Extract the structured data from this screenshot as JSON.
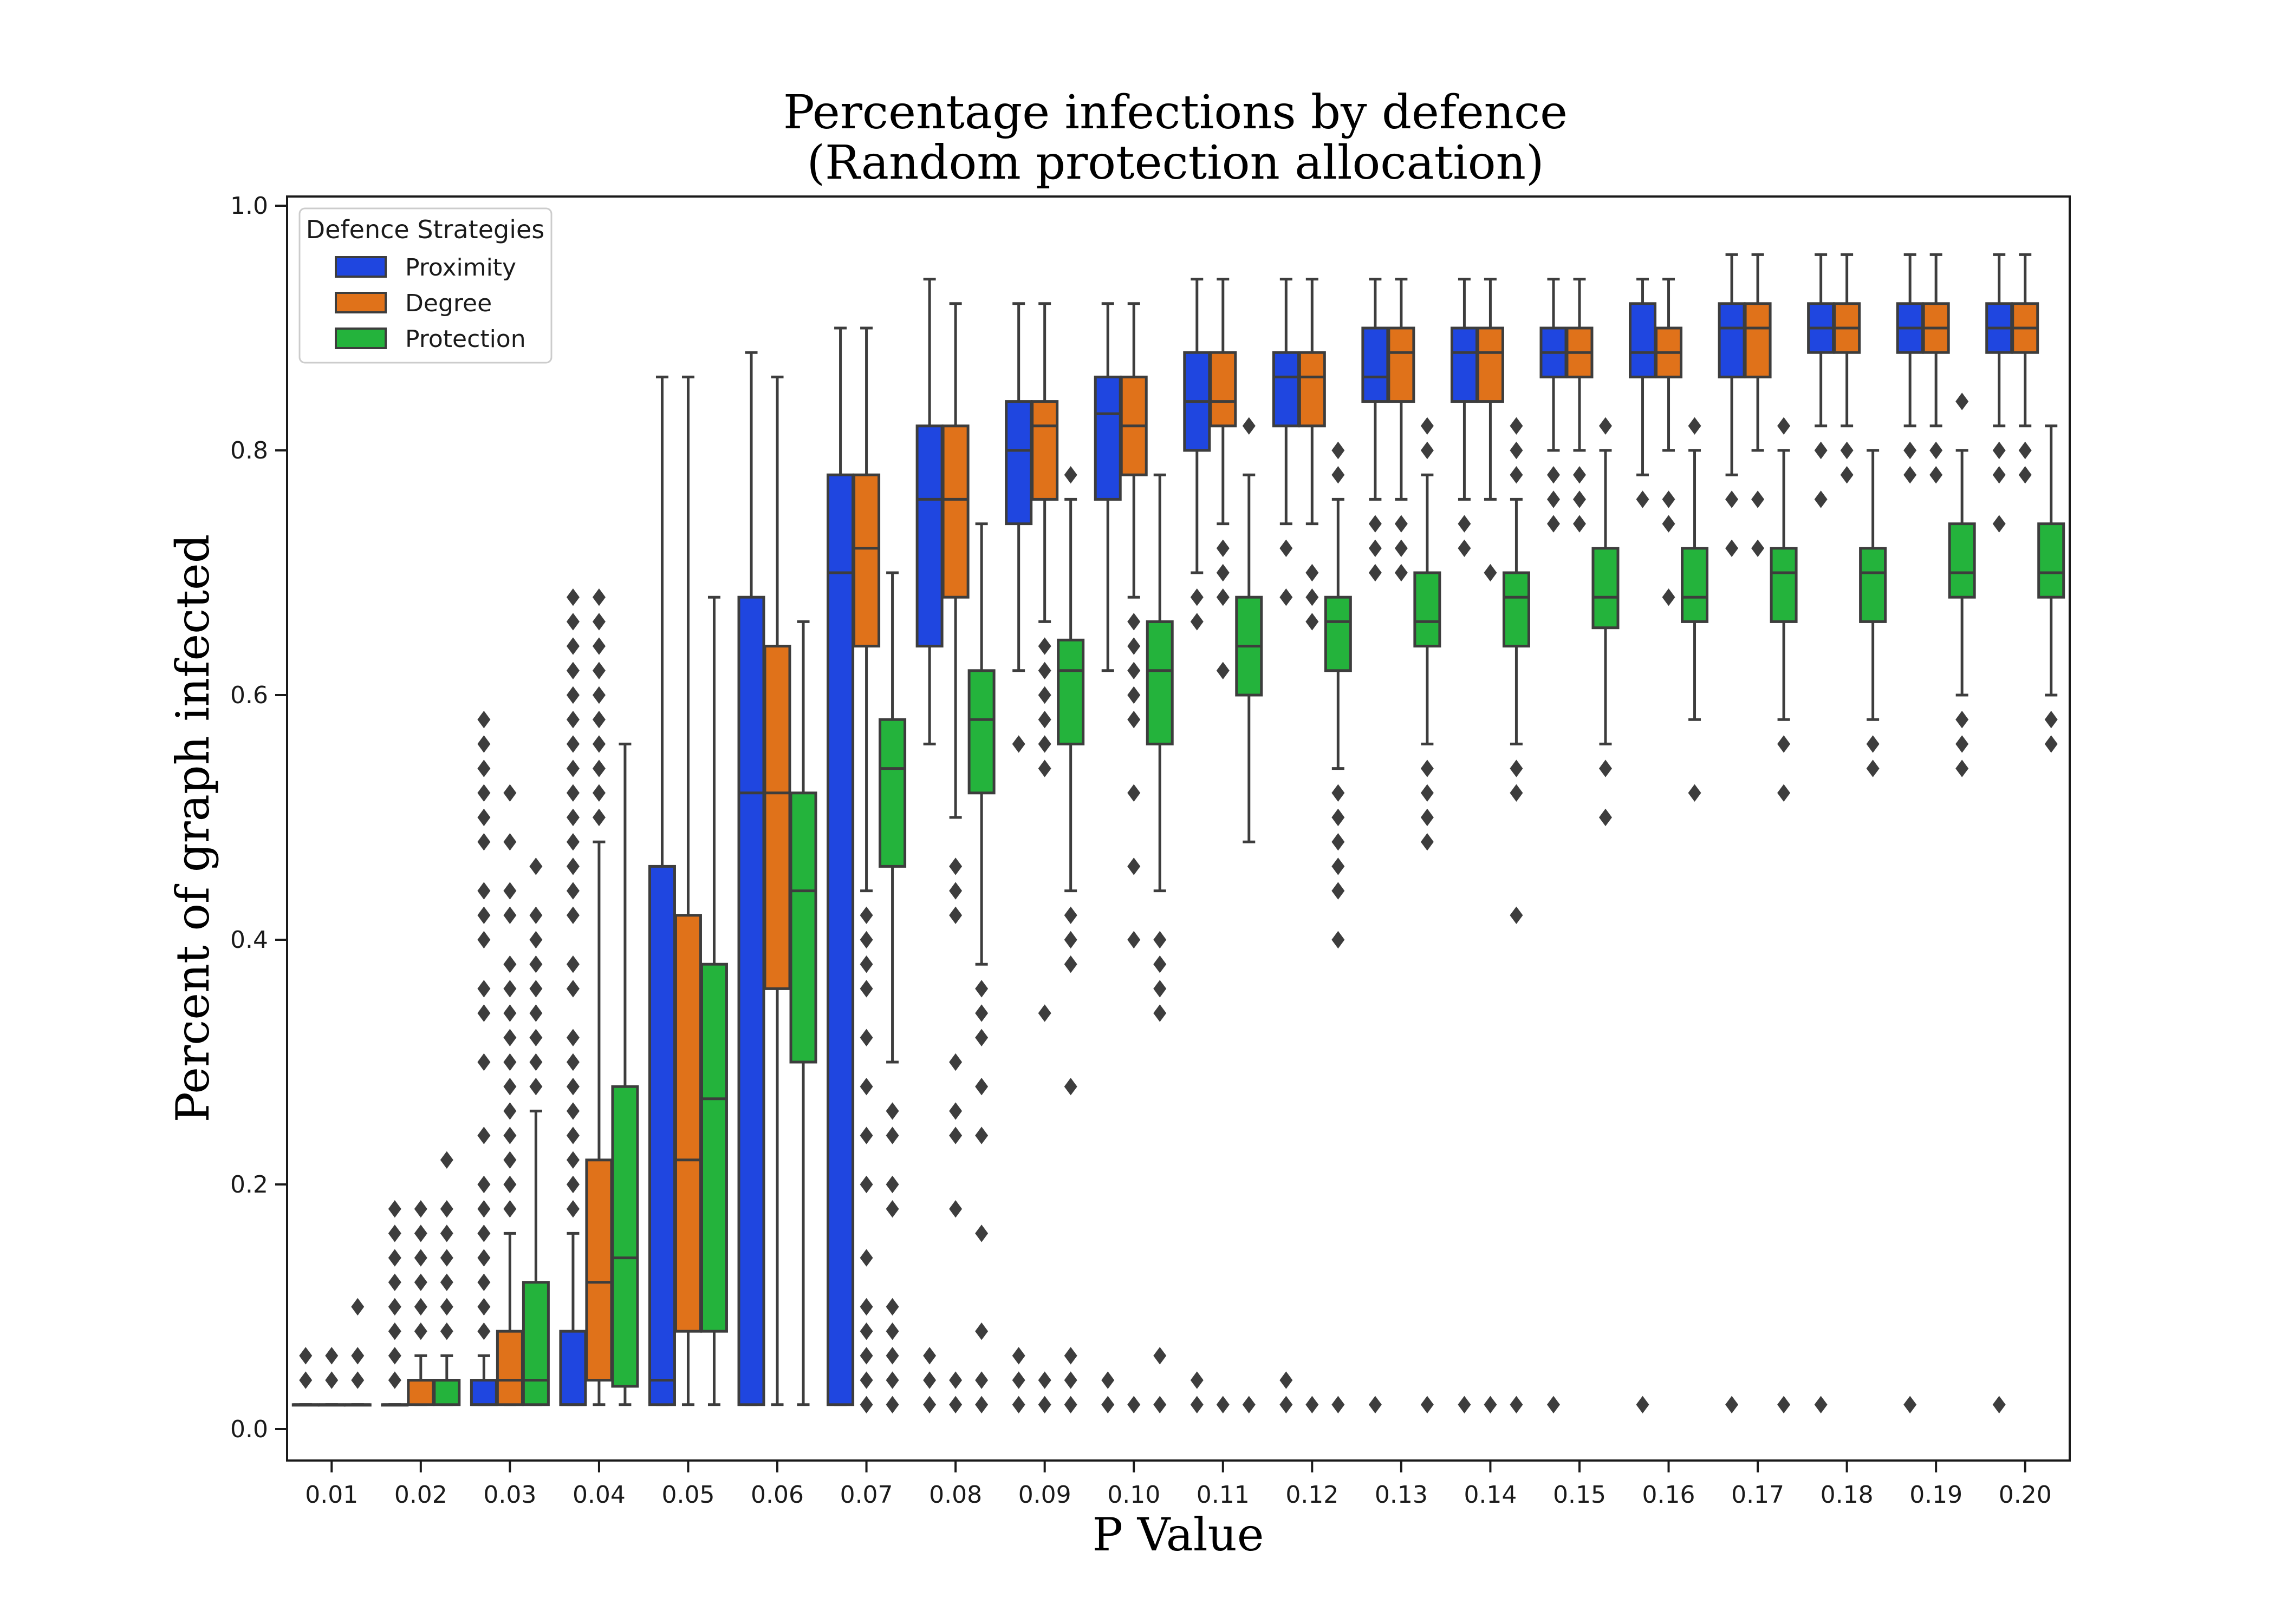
{
  "chart_data": {
    "type": "boxplot",
    "title_line1": "Percentage infections by defence",
    "title_line2": "(Random protection allocation)",
    "xlabel": "P Value",
    "ylabel": "Percent of graph infected",
    "ylim": [
      -0.025,
      1.0
    ],
    "y_ticks": [
      "0.0",
      "0.2",
      "0.4",
      "0.6",
      "0.8",
      "1.0"
    ],
    "categories": [
      "0.01",
      "0.02",
      "0.03",
      "0.04",
      "0.05",
      "0.06",
      "0.07",
      "0.08",
      "0.09",
      "0.10",
      "0.11",
      "0.12",
      "0.13",
      "0.14",
      "0.15",
      "0.16",
      "0.17",
      "0.18",
      "0.19",
      "0.20"
    ],
    "legend": {
      "title": "Defence Strategies",
      "placement": "top-left"
    },
    "series": [
      {
        "name": "Proximity",
        "color": "#1f46e0",
        "boxes": [
          {
            "q1": 0.02,
            "median": 0.02,
            "q3": 0.02,
            "whislo": 0.02,
            "whishi": 0.02,
            "fliers": [
              0.04,
              0.06
            ]
          },
          {
            "q1": 0.02,
            "median": 0.02,
            "q3": 0.02,
            "whislo": 0.02,
            "whishi": 0.02,
            "fliers": [
              0.04,
              0.06,
              0.08,
              0.1,
              0.12,
              0.14,
              0.16,
              0.18
            ]
          },
          {
            "q1": 0.02,
            "median": 0.02,
            "q3": 0.04,
            "whislo": 0.02,
            "whishi": 0.06,
            "fliers": [
              0.08,
              0.1,
              0.12,
              0.14,
              0.16,
              0.18,
              0.2,
              0.24,
              0.3,
              0.34,
              0.36,
              0.4,
              0.42,
              0.44,
              0.48,
              0.5,
              0.52,
              0.54,
              0.56,
              0.58
            ]
          },
          {
            "q1": 0.02,
            "median": 0.02,
            "q3": 0.08,
            "whislo": 0.02,
            "whishi": 0.16,
            "fliers": [
              0.18,
              0.2,
              0.22,
              0.24,
              0.26,
              0.28,
              0.3,
              0.32,
              0.36,
              0.38,
              0.42,
              0.44,
              0.46,
              0.48,
              0.5,
              0.52,
              0.54,
              0.56,
              0.58,
              0.6,
              0.62,
              0.64,
              0.66,
              0.68
            ]
          },
          {
            "q1": 0.02,
            "median": 0.04,
            "q3": 0.46,
            "whislo": 0.02,
            "whishi": 0.86,
            "fliers": []
          },
          {
            "q1": 0.02,
            "median": 0.52,
            "q3": 0.68,
            "whislo": 0.02,
            "whishi": 0.88,
            "fliers": []
          },
          {
            "q1": 0.02,
            "median": 0.7,
            "q3": 0.78,
            "whislo": 0.02,
            "whishi": 0.9,
            "fliers": []
          },
          {
            "q1": 0.64,
            "median": 0.76,
            "q3": 0.82,
            "whislo": 0.56,
            "whishi": 0.94,
            "fliers": [
              0.02,
              0.04,
              0.06
            ]
          },
          {
            "q1": 0.74,
            "median": 0.8,
            "q3": 0.84,
            "whislo": 0.62,
            "whishi": 0.92,
            "fliers": [
              0.02,
              0.04,
              0.06,
              0.56
            ]
          },
          {
            "q1": 0.76,
            "median": 0.83,
            "q3": 0.86,
            "whislo": 0.62,
            "whishi": 0.92,
            "fliers": [
              0.02,
              0.04
            ]
          },
          {
            "q1": 0.8,
            "median": 0.84,
            "q3": 0.88,
            "whislo": 0.7,
            "whishi": 0.94,
            "fliers": [
              0.02,
              0.04,
              0.66,
              0.68
            ]
          },
          {
            "q1": 0.82,
            "median": 0.86,
            "q3": 0.88,
            "whislo": 0.74,
            "whishi": 0.94,
            "fliers": [
              0.02,
              0.04,
              0.68,
              0.72
            ]
          },
          {
            "q1": 0.84,
            "median": 0.86,
            "q3": 0.9,
            "whislo": 0.76,
            "whishi": 0.94,
            "fliers": [
              0.02,
              0.7,
              0.72,
              0.74
            ]
          },
          {
            "q1": 0.84,
            "median": 0.88,
            "q3": 0.9,
            "whislo": 0.76,
            "whishi": 0.94,
            "fliers": [
              0.02,
              0.72,
              0.74
            ]
          },
          {
            "q1": 0.86,
            "median": 0.88,
            "q3": 0.9,
            "whislo": 0.8,
            "whishi": 0.94,
            "fliers": [
              0.02,
              0.74,
              0.76,
              0.78
            ]
          },
          {
            "q1": 0.86,
            "median": 0.88,
            "q3": 0.92,
            "whislo": 0.78,
            "whishi": 0.94,
            "fliers": [
              0.02,
              0.76
            ]
          },
          {
            "q1": 0.86,
            "median": 0.9,
            "q3": 0.92,
            "whislo": 0.78,
            "whishi": 0.96,
            "fliers": [
              0.02,
              0.72,
              0.76
            ]
          },
          {
            "q1": 0.88,
            "median": 0.9,
            "q3": 0.92,
            "whislo": 0.82,
            "whishi": 0.96,
            "fliers": [
              0.02,
              0.76,
              0.8
            ]
          },
          {
            "q1": 0.88,
            "median": 0.9,
            "q3": 0.92,
            "whislo": 0.82,
            "whishi": 0.96,
            "fliers": [
              0.02,
              0.78,
              0.8
            ]
          },
          {
            "q1": 0.88,
            "median": 0.9,
            "q3": 0.92,
            "whislo": 0.82,
            "whishi": 0.96,
            "fliers": [
              0.02,
              0.74,
              0.78,
              0.8
            ]
          }
        ]
      },
      {
        "name": "Degree",
        "color": "#e0721a",
        "boxes": [
          {
            "q1": 0.02,
            "median": 0.02,
            "q3": 0.02,
            "whislo": 0.02,
            "whishi": 0.02,
            "fliers": [
              0.04,
              0.06
            ]
          },
          {
            "q1": 0.02,
            "median": 0.04,
            "q3": 0.04,
            "whislo": 0.02,
            "whishi": 0.06,
            "fliers": [
              0.08,
              0.1,
              0.12,
              0.14,
              0.16,
              0.18
            ]
          },
          {
            "q1": 0.02,
            "median": 0.04,
            "q3": 0.08,
            "whislo": 0.02,
            "whishi": 0.16,
            "fliers": [
              0.18,
              0.2,
              0.22,
              0.24,
              0.26,
              0.28,
              0.3,
              0.32,
              0.34,
              0.36,
              0.38,
              0.42,
              0.44,
              0.48,
              0.52
            ]
          },
          {
            "q1": 0.04,
            "median": 0.12,
            "q3": 0.22,
            "whislo": 0.02,
            "whishi": 0.48,
            "fliers": [
              0.5,
              0.52,
              0.54,
              0.56,
              0.58,
              0.6,
              0.62,
              0.64,
              0.66,
              0.68
            ]
          },
          {
            "q1": 0.08,
            "median": 0.22,
            "q3": 0.42,
            "whislo": 0.02,
            "whishi": 0.86,
            "fliers": []
          },
          {
            "q1": 0.36,
            "median": 0.52,
            "q3": 0.64,
            "whislo": 0.02,
            "whishi": 0.86,
            "fliers": []
          },
          {
            "q1": 0.64,
            "median": 0.72,
            "q3": 0.78,
            "whislo": 0.44,
            "whishi": 0.9,
            "fliers": [
              0.02,
              0.04,
              0.06,
              0.08,
              0.1,
              0.14,
              0.2,
              0.24,
              0.28,
              0.32,
              0.36,
              0.38,
              0.4,
              0.42
            ]
          },
          {
            "q1": 0.68,
            "median": 0.76,
            "q3": 0.82,
            "whislo": 0.5,
            "whishi": 0.92,
            "fliers": [
              0.02,
              0.04,
              0.18,
              0.24,
              0.26,
              0.3,
              0.42,
              0.44,
              0.46
            ]
          },
          {
            "q1": 0.76,
            "median": 0.82,
            "q3": 0.84,
            "whislo": 0.66,
            "whishi": 0.92,
            "fliers": [
              0.02,
              0.04,
              0.34,
              0.54,
              0.56,
              0.58,
              0.6,
              0.62,
              0.64
            ]
          },
          {
            "q1": 0.78,
            "median": 0.82,
            "q3": 0.86,
            "whislo": 0.68,
            "whishi": 0.92,
            "fliers": [
              0.02,
              0.4,
              0.46,
              0.52,
              0.58,
              0.6,
              0.62,
              0.64,
              0.66
            ]
          },
          {
            "q1": 0.82,
            "median": 0.84,
            "q3": 0.88,
            "whislo": 0.74,
            "whishi": 0.94,
            "fliers": [
              0.02,
              0.62,
              0.68,
              0.7,
              0.72
            ]
          },
          {
            "q1": 0.82,
            "median": 0.86,
            "q3": 0.88,
            "whislo": 0.74,
            "whishi": 0.94,
            "fliers": [
              0.02,
              0.66,
              0.68,
              0.7
            ]
          },
          {
            "q1": 0.84,
            "median": 0.88,
            "q3": 0.9,
            "whislo": 0.76,
            "whishi": 0.94,
            "fliers": [
              0.7,
              0.72,
              0.74
            ]
          },
          {
            "q1": 0.84,
            "median": 0.88,
            "q3": 0.9,
            "whislo": 0.76,
            "whishi": 0.94,
            "fliers": [
              0.02,
              0.7
            ]
          },
          {
            "q1": 0.86,
            "median": 0.88,
            "q3": 0.9,
            "whislo": 0.8,
            "whishi": 0.94,
            "fliers": [
              0.74,
              0.76,
              0.78
            ]
          },
          {
            "q1": 0.86,
            "median": 0.88,
            "q3": 0.9,
            "whislo": 0.8,
            "whishi": 0.94,
            "fliers": [
              0.68,
              0.74,
              0.76
            ]
          },
          {
            "q1": 0.86,
            "median": 0.9,
            "q3": 0.92,
            "whislo": 0.8,
            "whishi": 0.96,
            "fliers": [
              0.72,
              0.76
            ]
          },
          {
            "q1": 0.88,
            "median": 0.9,
            "q3": 0.92,
            "whislo": 0.82,
            "whishi": 0.96,
            "fliers": [
              0.78,
              0.8
            ]
          },
          {
            "q1": 0.88,
            "median": 0.9,
            "q3": 0.92,
            "whislo": 0.82,
            "whishi": 0.96,
            "fliers": [
              0.78,
              0.8
            ]
          },
          {
            "q1": 0.88,
            "median": 0.9,
            "q3": 0.92,
            "whislo": 0.82,
            "whishi": 0.96,
            "fliers": [
              0.78,
              0.8
            ]
          }
        ]
      },
      {
        "name": "Protection",
        "color": "#24b33c",
        "boxes": [
          {
            "q1": 0.02,
            "median": 0.02,
            "q3": 0.02,
            "whislo": 0.02,
            "whishi": 0.02,
            "fliers": [
              0.04,
              0.06,
              0.1
            ]
          },
          {
            "q1": 0.02,
            "median": 0.04,
            "q3": 0.04,
            "whislo": 0.02,
            "whishi": 0.06,
            "fliers": [
              0.08,
              0.1,
              0.12,
              0.14,
              0.16,
              0.18,
              0.22
            ]
          },
          {
            "q1": 0.02,
            "median": 0.04,
            "q3": 0.12,
            "whislo": 0.02,
            "whishi": 0.26,
            "fliers": [
              0.28,
              0.3,
              0.32,
              0.34,
              0.36,
              0.38,
              0.4,
              0.42,
              0.46
            ]
          },
          {
            "q1": 0.035,
            "median": 0.14,
            "q3": 0.28,
            "whislo": 0.02,
            "whishi": 0.56,
            "fliers": []
          },
          {
            "q1": 0.08,
            "median": 0.27,
            "q3": 0.38,
            "whislo": 0.02,
            "whishi": 0.68,
            "fliers": []
          },
          {
            "q1": 0.3,
            "median": 0.44,
            "q3": 0.52,
            "whislo": 0.02,
            "whishi": 0.66,
            "fliers": []
          },
          {
            "q1": 0.46,
            "median": 0.54,
            "q3": 0.58,
            "whislo": 0.3,
            "whishi": 0.7,
            "fliers": [
              0.02,
              0.04,
              0.06,
              0.08,
              0.1,
              0.18,
              0.2,
              0.24,
              0.26
            ]
          },
          {
            "q1": 0.52,
            "median": 0.58,
            "q3": 0.62,
            "whislo": 0.38,
            "whishi": 0.74,
            "fliers": [
              0.02,
              0.04,
              0.08,
              0.16,
              0.24,
              0.28,
              0.32,
              0.34,
              0.36
            ]
          },
          {
            "q1": 0.56,
            "median": 0.62,
            "q3": 0.645,
            "whislo": 0.44,
            "whishi": 0.76,
            "fliers": [
              0.02,
              0.04,
              0.06,
              0.28,
              0.38,
              0.4,
              0.42,
              0.78
            ]
          },
          {
            "q1": 0.56,
            "median": 0.62,
            "q3": 0.66,
            "whislo": 0.44,
            "whishi": 0.78,
            "fliers": [
              0.02,
              0.06,
              0.34,
              0.36,
              0.38,
              0.4
            ]
          },
          {
            "q1": 0.6,
            "median": 0.64,
            "q3": 0.68,
            "whislo": 0.48,
            "whishi": 0.78,
            "fliers": [
              0.02,
              0.82
            ]
          },
          {
            "q1": 0.62,
            "median": 0.66,
            "q3": 0.68,
            "whislo": 0.54,
            "whishi": 0.76,
            "fliers": [
              0.02,
              0.4,
              0.44,
              0.46,
              0.48,
              0.5,
              0.52,
              0.78,
              0.8
            ]
          },
          {
            "q1": 0.64,
            "median": 0.66,
            "q3": 0.7,
            "whislo": 0.56,
            "whishi": 0.78,
            "fliers": [
              0.02,
              0.48,
              0.5,
              0.52,
              0.54,
              0.8,
              0.82
            ]
          },
          {
            "q1": 0.64,
            "median": 0.68,
            "q3": 0.7,
            "whislo": 0.56,
            "whishi": 0.76,
            "fliers": [
              0.02,
              0.42,
              0.52,
              0.54,
              0.78,
              0.8,
              0.82
            ]
          },
          {
            "q1": 0.655,
            "median": 0.68,
            "q3": 0.72,
            "whislo": 0.56,
            "whishi": 0.8,
            "fliers": [
              0.5,
              0.54,
              0.82
            ]
          },
          {
            "q1": 0.66,
            "median": 0.68,
            "q3": 0.72,
            "whislo": 0.58,
            "whishi": 0.8,
            "fliers": [
              0.52,
              0.82
            ]
          },
          {
            "q1": 0.66,
            "median": 0.7,
            "q3": 0.72,
            "whislo": 0.58,
            "whishi": 0.8,
            "fliers": [
              0.02,
              0.52,
              0.56,
              0.82
            ]
          },
          {
            "q1": 0.66,
            "median": 0.7,
            "q3": 0.72,
            "whislo": 0.58,
            "whishi": 0.8,
            "fliers": [
              0.54,
              0.56
            ]
          },
          {
            "q1": 0.68,
            "median": 0.7,
            "q3": 0.74,
            "whislo": 0.6,
            "whishi": 0.8,
            "fliers": [
              0.54,
              0.56,
              0.58,
              0.84
            ]
          },
          {
            "q1": 0.68,
            "median": 0.7,
            "q3": 0.74,
            "whislo": 0.6,
            "whishi": 0.82,
            "fliers": [
              0.56,
              0.58
            ]
          }
        ]
      }
    ]
  }
}
